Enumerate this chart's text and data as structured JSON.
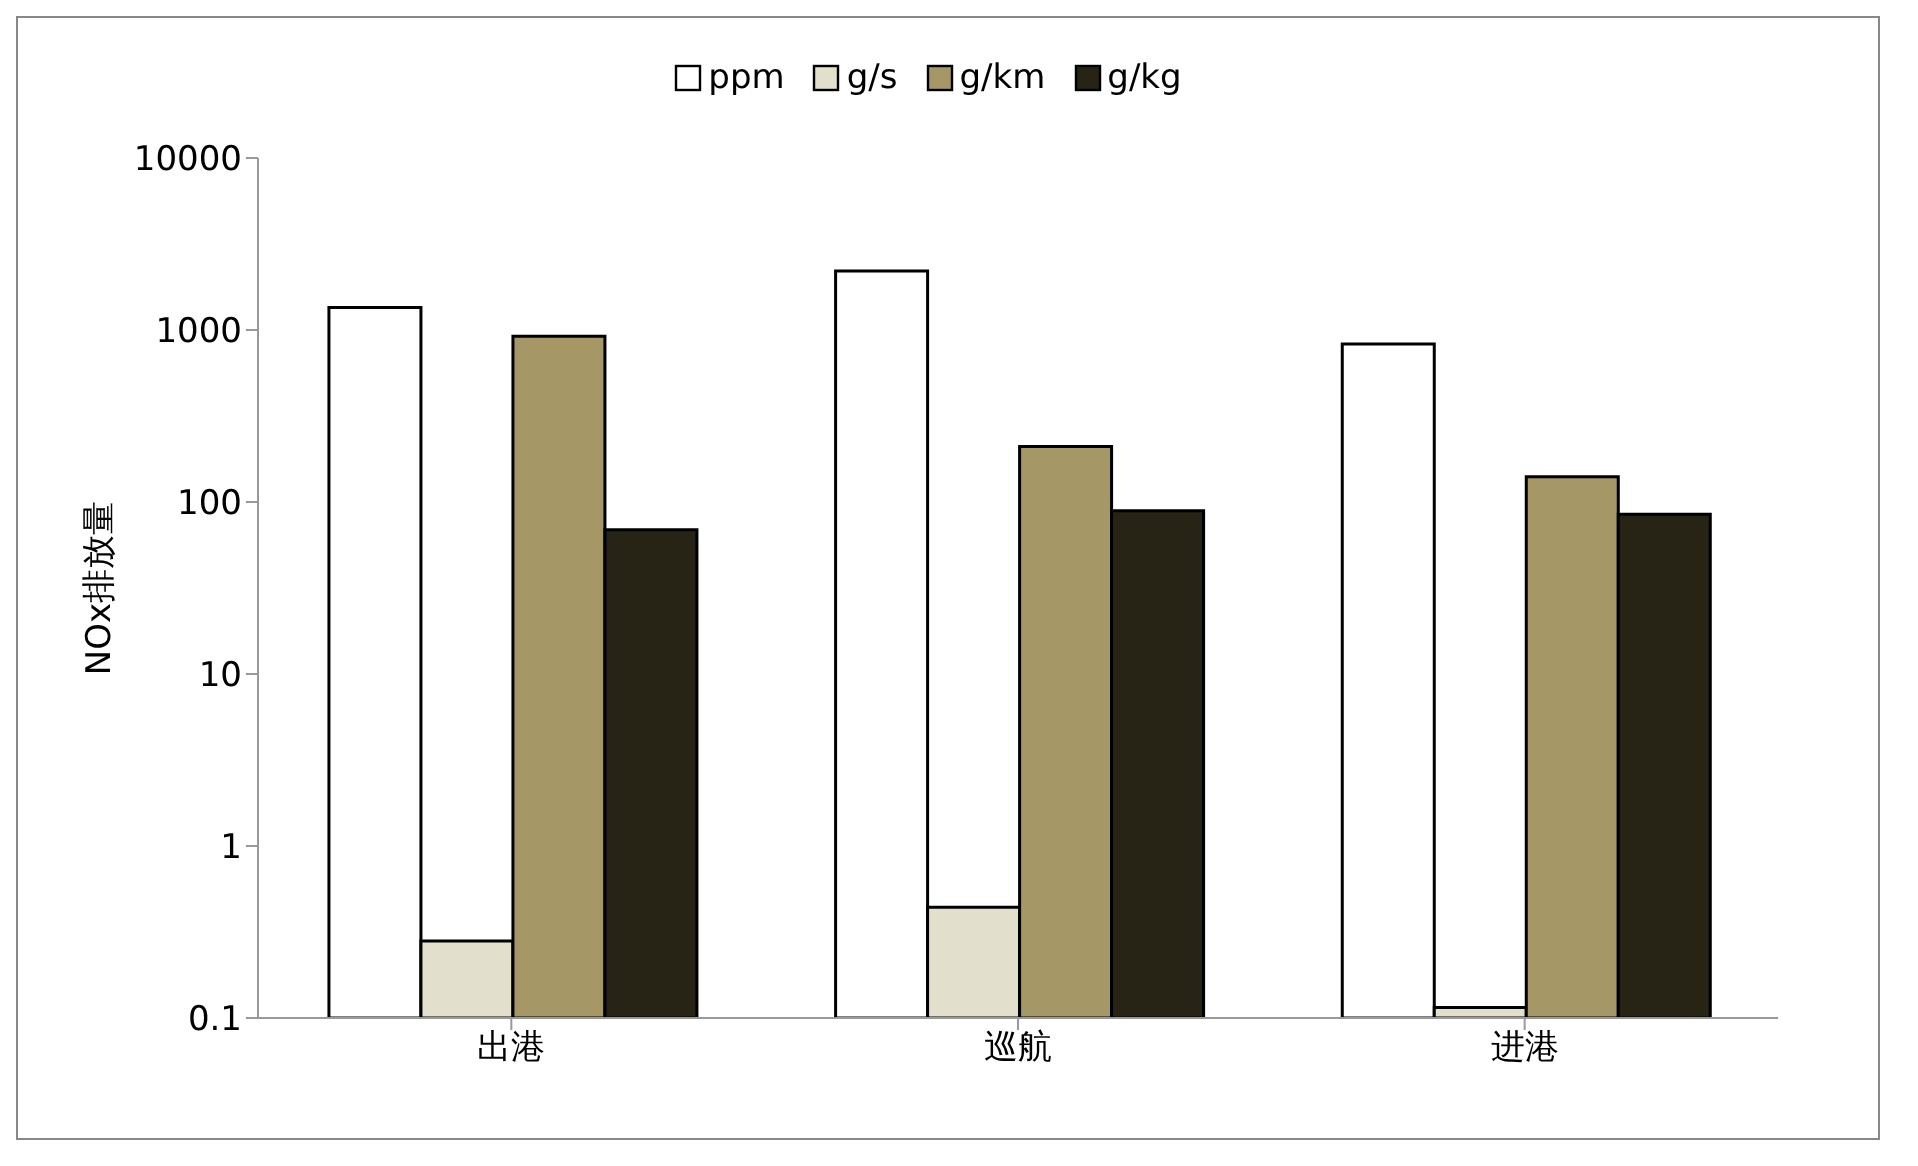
{
  "chart_data": {
    "type": "bar",
    "ylabel": "NOx排放量",
    "categories": [
      "出港",
      "巡航",
      "进港"
    ],
    "series": [
      {
        "name": "ppm",
        "color": "#ffffff",
        "values": [
          1350,
          2200,
          830
        ]
      },
      {
        "name": "g/s",
        "color": "#e2dfcc",
        "values": [
          0.28,
          0.44,
          0.115
        ]
      },
      {
        "name": "g/km",
        "color": "#a59866",
        "values": [
          920,
          210,
          140
        ]
      },
      {
        "name": "g/kg",
        "color": "#272416",
        "values": [
          69,
          89,
          85
        ]
      }
    ],
    "log": true,
    "ylim": [
      0.1,
      10000
    ],
    "yticks": [
      0.1,
      1,
      10,
      100,
      1000,
      10000
    ],
    "legend": "top"
  }
}
